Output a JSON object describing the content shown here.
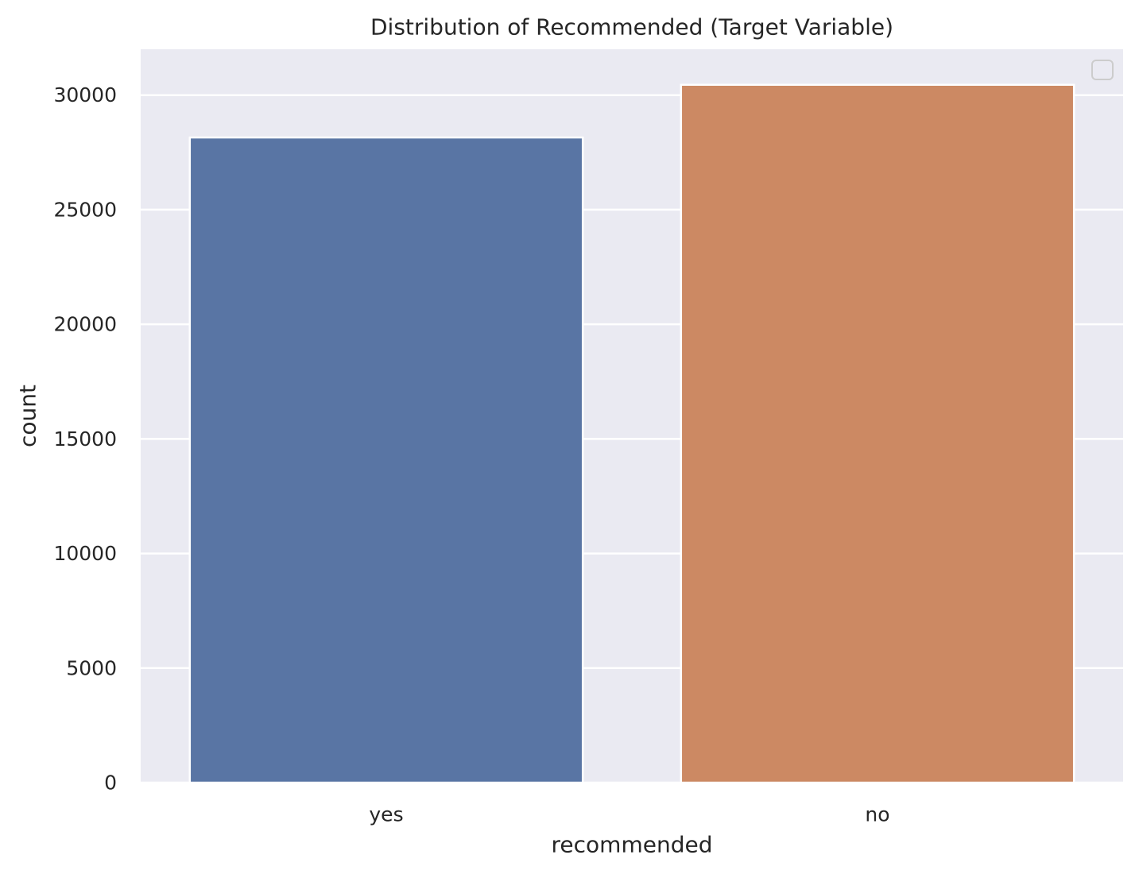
{
  "chart_data": {
    "type": "bar",
    "title": "Distribution of Recommended (Target Variable)",
    "xlabel": "recommended",
    "ylabel": "count",
    "categories": [
      "yes",
      "no"
    ],
    "values": [
      28150,
      30450
    ],
    "ylim": [
      0,
      32000
    ],
    "yticks": [
      0,
      5000,
      10000,
      15000,
      20000,
      25000,
      30000
    ],
    "ytick_labels": [
      "0",
      "5000",
      "10000",
      "15000",
      "20000",
      "25000",
      "30000"
    ],
    "colors": [
      "#5975a4",
      "#cc8963"
    ],
    "background_color": "#eaeaf2",
    "grid": true,
    "grid_color": "#ffffff",
    "legend": {
      "placement": "top-right",
      "entries": []
    }
  }
}
